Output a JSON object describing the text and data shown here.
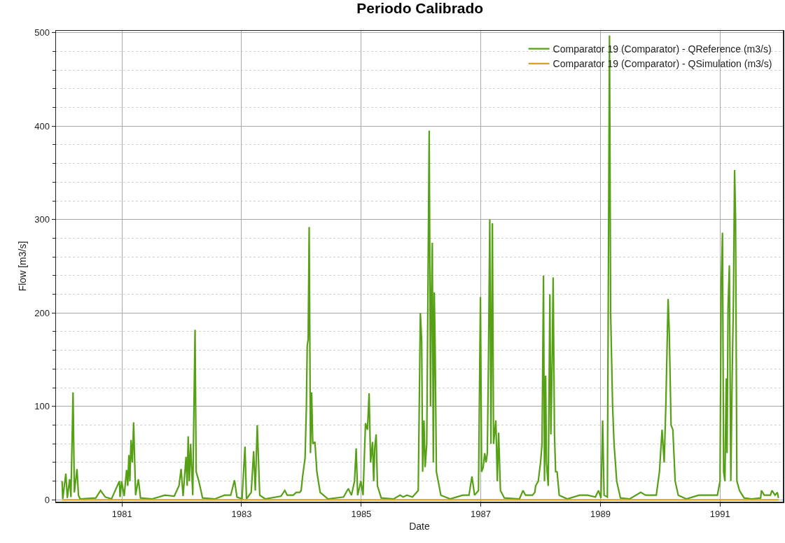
{
  "chart_data": {
    "type": "line",
    "title": "Periodo Calibrado",
    "xlabel": "Date",
    "ylabel": "Flow [m3/s]",
    "xlim": [
      "1979-11-25",
      "1992-01-20"
    ],
    "xticks": [
      {
        "value": "1981-01-01",
        "label": "1981"
      },
      {
        "value": "1983-01-01",
        "label": "1983"
      },
      {
        "value": "1985-01-01",
        "label": "1985"
      },
      {
        "value": "1987-01-01",
        "label": "1987"
      },
      {
        "value": "1989-01-01",
        "label": "1989"
      },
      {
        "value": "1991-01-01",
        "label": "1991"
      }
    ],
    "ylim": [
      -2,
      502
    ],
    "yticks": [
      0,
      100,
      200,
      300,
      400,
      500
    ],
    "grid": true,
    "legend": "top right",
    "line_style": "solid",
    "marker": "none",
    "series": [
      {
        "name": "Comparator 19 (Comparator) - QReference (m3/s)",
        "color": "#55a014",
        "x": [
          "1980-01-01",
          "1980-01-05",
          "1980-01-24",
          "1980-02-02",
          "1980-02-16",
          "1980-02-24",
          "1980-03-08",
          "1980-03-16",
          "1980-04-01",
          "1980-04-10",
          "1980-04-20",
          "1980-07-25",
          "1980-08-23",
          "1980-09-21",
          "1980-10-29",
          "1980-12-16",
          "1980-12-20",
          "1980-12-30",
          "1981-01-14",
          "1981-01-29",
          "1981-02-05",
          "1981-02-12",
          "1981-02-18",
          "1981-02-25",
          "1981-03-05",
          "1981-03-13",
          "1981-03-25",
          "1981-04-11",
          "1981-04-24",
          "1981-07-05",
          "1981-09-20",
          "1981-11-16",
          "1981-12-15",
          "1981-12-28",
          "1982-01-09",
          "1982-01-27",
          "1982-02-03",
          "1982-02-09",
          "1982-02-16",
          "1982-02-24",
          "1982-03-09",
          "1982-03-23",
          "1982-03-30",
          "1982-04-15",
          "1982-05-08",
          "1982-07-23",
          "1982-09-19",
          "1982-10-27",
          "1982-11-19",
          "1982-12-04",
          "1983-01-04",
          "1983-01-22",
          "1983-01-31",
          "1983-03-01",
          "1983-03-16",
          "1983-03-26",
          "1983-04-07",
          "1983-04-22",
          "1983-05-26",
          "1983-08-30",
          "1983-09-22",
          "1983-10-07",
          "1983-11-13",
          "1983-12-01",
          "1983-12-23",
          "1983-12-31",
          "1984-01-09",
          "1984-01-24",
          "1984-02-01",
          "1984-02-06",
          "1984-02-12",
          "1984-02-18",
          "1984-02-26",
          "1984-03-04",
          "1984-03-11",
          "1984-03-24",
          "1984-04-05",
          "1984-04-25",
          "1984-06-12",
          "1984-09-15",
          "1984-10-14",
          "1984-11-02",
          "1984-11-21",
          "1984-12-01",
          "1984-12-10",
          "1984-12-30",
          "1985-01-12",
          "1985-01-27",
          "1985-02-08",
          "1985-02-18",
          "1985-02-27",
          "1985-03-11",
          "1985-03-18",
          "1985-03-25",
          "1985-04-02",
          "1985-04-10",
          "1985-05-03",
          "1985-07-19",
          "1985-08-26",
          "1985-09-14",
          "1985-10-07",
          "1985-11-10",
          "1985-12-15",
          "1985-12-28",
          "1986-01-05",
          "1986-01-11",
          "1986-01-19",
          "1986-01-26",
          "1986-02-05",
          "1986-02-20",
          "1986-02-28",
          "1986-03-05",
          "1986-03-11",
          "1986-03-17",
          "1986-03-23",
          "1986-03-28",
          "1986-04-05",
          "1986-04-16",
          "1986-05-02",
          "1986-06-28",
          "1986-09-13",
          "1986-10-21",
          "1986-11-08",
          "1986-11-24",
          "1986-12-18",
          "1986-12-30",
          "1987-01-06",
          "1987-01-16",
          "1987-01-25",
          "1987-02-02",
          "1987-02-10",
          "1987-02-17",
          "1987-02-25",
          "1987-03-04",
          "1987-03-13",
          "1987-03-20",
          "1987-04-03",
          "1987-04-12",
          "1987-04-20",
          "1987-05-01",
          "1987-05-25",
          "1987-08-25",
          "1987-09-16",
          "1987-10-01",
          "1987-11-13",
          "1987-11-27",
          "1987-12-02",
          "1987-12-18",
          "1988-01-01",
          "1988-01-10",
          "1988-01-19",
          "1988-01-25",
          "1988-02-01",
          "1988-02-06",
          "1988-02-17",
          "1988-02-27",
          "1988-03-04",
          "1988-03-12",
          "1988-03-18",
          "1988-03-26",
          "1988-04-02",
          "1988-04-11",
          "1988-04-24",
          "1988-06-12",
          "1988-08-27",
          "1988-10-14",
          "1988-12-01",
          "1988-12-20",
          "1989-01-04",
          "1989-01-14",
          "1989-01-23",
          "1989-02-12",
          "1989-02-25",
          "1989-03-04",
          "1989-03-16",
          "1989-03-25",
          "1989-04-10",
          "1989-05-03",
          "1989-06-29",
          "1989-09-04",
          "1989-10-03",
          "1989-12-08",
          "1989-12-27",
          "1990-01-12",
          "1990-01-25",
          "1990-02-04",
          "1990-02-18",
          "1990-02-25",
          "1990-03-08",
          "1990-03-19",
          "1990-04-02",
          "1990-04-21",
          "1990-06-09",
          "1990-08-24",
          "1990-10-20",
          "1990-12-16",
          "1991-01-01",
          "1991-01-08",
          "1991-01-16",
          "1991-01-23",
          "1991-01-31",
          "1991-02-08",
          "1991-02-13",
          "1991-02-19",
          "1991-02-27",
          "1991-03-08",
          "1991-03-16",
          "1991-03-24",
          "1991-03-31",
          "1991-04-06",
          "1991-04-14",
          "1991-04-30",
          "1991-05-28",
          "1991-07-14",
          "1991-09-06",
          "1991-09-11",
          "1991-09-28",
          "1991-11-05",
          "1991-11-14",
          "1991-12-03",
          "1991-12-17",
          "1991-12-24"
        ],
        "values": [
          20,
          1,
          28,
          2,
          22,
          3,
          115,
          8,
          33,
          5,
          1,
          2,
          10,
          3,
          1,
          20,
          3,
          20,
          4,
          32,
          15,
          48,
          20,
          64,
          40,
          83,
          5,
          22,
          2,
          1,
          5,
          4,
          15,
          33,
          4,
          46,
          15,
          68,
          20,
          60,
          5,
          182,
          30,
          20,
          2,
          1,
          5,
          5,
          21,
          3,
          1,
          57,
          1,
          8,
          52,
          10,
          80,
          5,
          1,
          4,
          10,
          5,
          5,
          8,
          8,
          10,
          25,
          45,
          100,
          165,
          172,
          292,
          50,
          115,
          60,
          62,
          30,
          8,
          1,
          3,
          12,
          5,
          20,
          55,
          5,
          20,
          5,
          82,
          75,
          114,
          40,
          62,
          20,
          57,
          70,
          15,
          2,
          1,
          5,
          3,
          5,
          3,
          10,
          200,
          170,
          30,
          85,
          35,
          60,
          395,
          100,
          210,
          275,
          40,
          222,
          166,
          30,
          20,
          5,
          1,
          5,
          5,
          25,
          5,
          10,
          217,
          30,
          35,
          50,
          40,
          50,
          150,
          300,
          60,
          296,
          60,
          85,
          20,
          72,
          10,
          2,
          1,
          10,
          5,
          5,
          8,
          15,
          20,
          40,
          60,
          240,
          20,
          133,
          40,
          15,
          220,
          70,
          150,
          238,
          70,
          30,
          30,
          5,
          1,
          5,
          5,
          3,
          10,
          2,
          85,
          5,
          3,
          497,
          200,
          100,
          60,
          20,
          2,
          1,
          8,
          5,
          5,
          30,
          75,
          40,
          100,
          215,
          180,
          80,
          75,
          20,
          5,
          1,
          5,
          5,
          5,
          20,
          229,
          286,
          30,
          20,
          130,
          50,
          205,
          251,
          20,
          130,
          215,
          353,
          300,
          20,
          10,
          2,
          1,
          2,
          10,
          5,
          5,
          10,
          5,
          8,
          2
        ]
      },
      {
        "name": "Comparator 19 (Comparator) - QSimulation (m3/s)",
        "color": "#dba01e",
        "x": [
          "1980-01-01",
          "1991-12-24"
        ],
        "values": [
          0,
          0
        ]
      }
    ]
  }
}
